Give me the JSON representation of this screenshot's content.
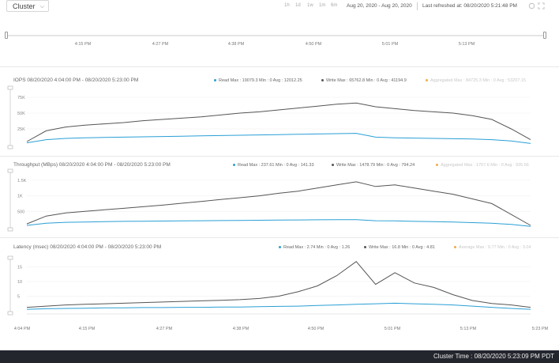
{
  "header": {
    "cluster_label": "Cluster",
    "ranges": [
      "1h",
      "1d",
      "1w",
      "1m",
      "6m"
    ],
    "date_range": "Aug 20, 2020 - Aug 20, 2020",
    "last_refreshed": "Last refreshed at: 08/20/2020 5:21:48 PM"
  },
  "overview": {
    "ticks": [
      "4:15 PM",
      "4:27 PM",
      "4:38 PM",
      "4:50 PM",
      "5:01 PM",
      "5:13 PM"
    ]
  },
  "colors": {
    "read": "#2a9fd6",
    "write": "#555555",
    "aggregate": "#f0ad4e",
    "footer_bg": "#23262d"
  },
  "panels": {
    "iops": {
      "title": "IOPS 08/20/2020 4:04:00 PM - 08/20/2020 5:23:00 PM",
      "read_legend": "Read Max : 19079.3 Min : 0 Avg : 12012.25",
      "write_legend": "Write Max : 65762.8 Min : 0 Avg : 41194.9",
      "agg_legend": "Aggregated Max : 84725.3 Min : 0 Avg : 53207.15",
      "y_ticks": [
        "75K",
        "50K",
        "25K"
      ]
    },
    "throughput": {
      "title": "Throughput (MBps) 08/20/2020 4:04:00 PM - 08/20/2020 5:23:00 PM",
      "read_legend": "Read Max : 237.61 Min : 0 Avg : 141.33",
      "write_legend": "Write Max : 1478.79 Min : 0 Avg : 794.24",
      "agg_legend": "Aggregated Max : 1707.6 Min : 0 Avg : 935.56",
      "y_ticks": [
        "1.5K",
        "1K",
        "500"
      ]
    },
    "latency": {
      "title": "Latency (msec) 08/20/2020 4:04:00 PM - 08/20/2020 5:23:00 PM",
      "read_legend": "Read Max : 2.74 Min : 0 Avg : 1.26",
      "write_legend": "Write Max : 16.8 Min : 0 Avg : 4.81",
      "agg_legend": "Average Max : 9.77 Min : 0 Avg : 3.04",
      "y_ticks": [
        "15",
        "10",
        "5"
      ]
    }
  },
  "x_axis": {
    "ticks": [
      "4:04 PM",
      "4:15 PM",
      "4:27 PM",
      "4:38 PM",
      "4:50 PM",
      "5:01 PM",
      "5:13 PM",
      "5:23 PM"
    ]
  },
  "footer": {
    "cluster_time": "Cluster Time : 08/20/2020 5:23:09 PM PDT"
  },
  "chart_data": [
    {
      "type": "line",
      "title": "IOPS 08/20/2020 4:04:00 PM - 08/20/2020 5:23:00 PM",
      "x": [
        "4:04 PM",
        "4:07 PM",
        "4:10 PM",
        "4:13 PM",
        "4:16 PM",
        "4:19 PM",
        "4:22 PM",
        "4:25 PM",
        "4:28 PM",
        "4:31 PM",
        "4:34 PM",
        "4:37 PM",
        "4:40 PM",
        "4:43 PM",
        "4:46 PM",
        "4:49 PM",
        "4:52 PM",
        "4:55 PM",
        "4:58 PM",
        "5:01 PM",
        "5:04 PM",
        "5:07 PM",
        "5:10 PM",
        "5:13 PM",
        "5:16 PM",
        "5:19 PM",
        "5:22 PM"
      ],
      "ylim": [
        0,
        85000
      ],
      "series": [
        {
          "name": "Write",
          "values": [
            5000,
            22000,
            28000,
            31000,
            33000,
            35000,
            38000,
            40000,
            42000,
            44000,
            47000,
            50000,
            52000,
            55000,
            58000,
            61000,
            64000,
            66000,
            60000,
            57000,
            54000,
            52000,
            50000,
            46000,
            40000,
            25000,
            8000
          ]
        },
        {
          "name": "Read",
          "values": [
            3000,
            8000,
            10000,
            11000,
            11500,
            12000,
            12500,
            13000,
            13500,
            14000,
            14500,
            15000,
            15500,
            16000,
            16500,
            17000,
            17500,
            18000,
            12000,
            11000,
            10500,
            10000,
            9500,
            9000,
            8000,
            6000,
            2000
          ]
        }
      ]
    },
    {
      "type": "line",
      "title": "Throughput (MBps) 08/20/2020 4:04:00 PM - 08/20/2020 5:23:00 PM",
      "x": [
        "4:04 PM",
        "4:07 PM",
        "4:10 PM",
        "4:13 PM",
        "4:16 PM",
        "4:19 PM",
        "4:22 PM",
        "4:25 PM",
        "4:28 PM",
        "4:31 PM",
        "4:34 PM",
        "4:37 PM",
        "4:40 PM",
        "4:43 PM",
        "4:46 PM",
        "4:49 PM",
        "4:52 PM",
        "4:55 PM",
        "4:58 PM",
        "5:01 PM",
        "5:04 PM",
        "5:07 PM",
        "5:10 PM",
        "5:13 PM",
        "5:16 PM",
        "5:19 PM",
        "5:22 PM"
      ],
      "ylim": [
        0,
        1700
      ],
      "series": [
        {
          "name": "Write",
          "values": [
            100,
            350,
            450,
            500,
            550,
            600,
            650,
            700,
            760,
            820,
            880,
            940,
            1000,
            1080,
            1150,
            1250,
            1350,
            1450,
            1300,
            1350,
            1250,
            1150,
            1050,
            900,
            750,
            400,
            50
          ]
        },
        {
          "name": "Read",
          "values": [
            50,
            120,
            150,
            160,
            170,
            180,
            185,
            190,
            195,
            200,
            205,
            210,
            215,
            220,
            225,
            230,
            235,
            237,
            200,
            195,
            180,
            170,
            160,
            140,
            120,
            80,
            20
          ]
        }
      ]
    },
    {
      "type": "line",
      "title": "Latency (msec) 08/20/2020 4:04:00 PM - 08/20/2020 5:23:00 PM",
      "x": [
        "4:04 PM",
        "4:07 PM",
        "4:10 PM",
        "4:13 PM",
        "4:16 PM",
        "4:19 PM",
        "4:22 PM",
        "4:25 PM",
        "4:28 PM",
        "4:31 PM",
        "4:34 PM",
        "4:37 PM",
        "4:40 PM",
        "4:43 PM",
        "4:46 PM",
        "4:49 PM",
        "4:52 PM",
        "4:55 PM",
        "4:58 PM",
        "5:01 PM",
        "5:04 PM",
        "5:07 PM",
        "5:10 PM",
        "5:13 PM",
        "5:16 PM",
        "5:19 PM",
        "5:22 PM"
      ],
      "ylim": [
        0,
        17
      ],
      "series": [
        {
          "name": "Write",
          "values": [
            1.2,
            1.6,
            2.0,
            2.2,
            2.4,
            2.6,
            2.8,
            3.0,
            3.2,
            3.4,
            3.6,
            3.8,
            4.2,
            5.0,
            6.5,
            8.5,
            12.0,
            16.8,
            9.0,
            13.0,
            9.5,
            8.0,
            5.5,
            3.5,
            2.5,
            2.0,
            1.2
          ]
        },
        {
          "name": "Read",
          "values": [
            0.5,
            0.7,
            0.8,
            0.9,
            1.0,
            1.0,
            1.1,
            1.1,
            1.2,
            1.2,
            1.3,
            1.3,
            1.4,
            1.5,
            1.6,
            1.8,
            2.0,
            2.2,
            2.4,
            2.6,
            2.4,
            2.2,
            2.0,
            1.6,
            1.2,
            0.8,
            0.5
          ]
        }
      ]
    }
  ]
}
